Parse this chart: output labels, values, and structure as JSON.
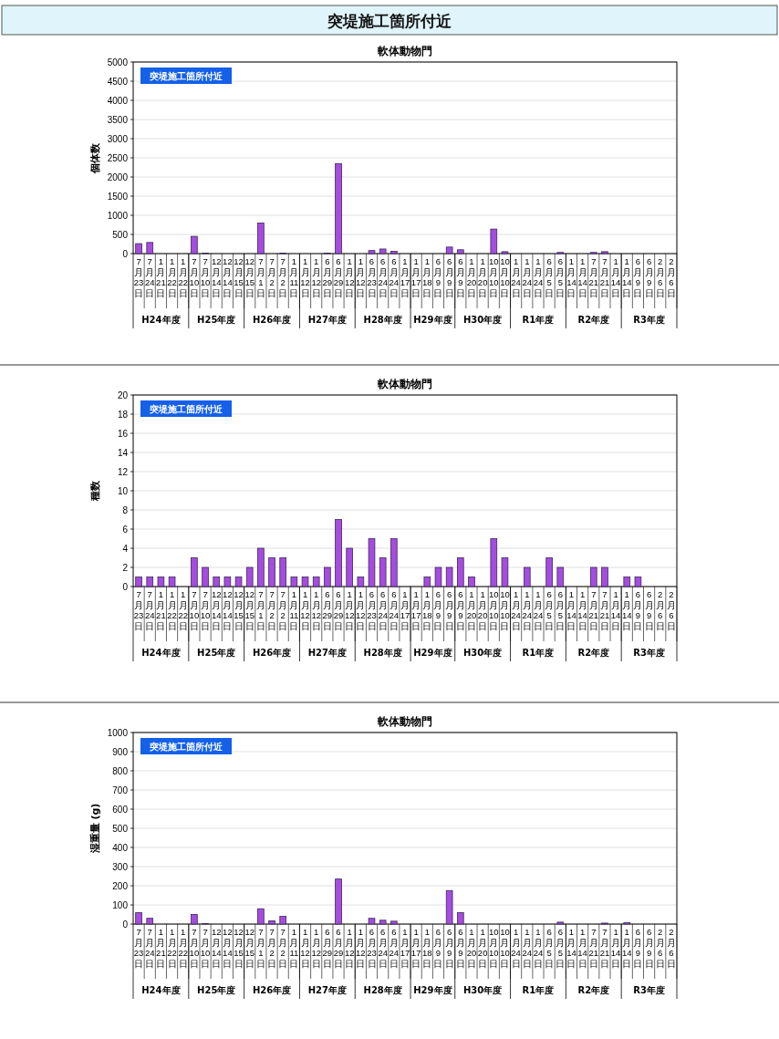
{
  "chart_data": [
    {
      "type": "bar",
      "subtitle": "突堤施工箇所付近",
      "title": "軟体動物門",
      "ylabel": "個体数",
      "categories": [
        "7月23日",
        "7月24日",
        "1月21日",
        "1月22日",
        "1月22日",
        "7月10日",
        "7月10日",
        "12月14日",
        "12月14日",
        "12月15日",
        "12月15日",
        "7月1日",
        "7月2日",
        "7月2日",
        "1月11日",
        "1月12日",
        "1月12日",
        "6月29日",
        "6月29日",
        "1月12日",
        "1月12日",
        "6月23日",
        "6月24日",
        "6月24日",
        "1月17日",
        "1月17日",
        "1月18日",
        "6月9日",
        "6月9日",
        "6月9日",
        "1月20日",
        "1月20日",
        "10月10日",
        "10月10日",
        "1月24日",
        "1月24日",
        "1月24日",
        "6月5日",
        "6月5日",
        "1月14日",
        "1月14日",
        "7月21日",
        "7月21日",
        "1月14日",
        "1月14日",
        "6月9日",
        "6月9日",
        "2月6日",
        "2月6日"
      ],
      "values": [
        260,
        290,
        0,
        0,
        0,
        450,
        10,
        0,
        0,
        0,
        0,
        800,
        0,
        10,
        0,
        0,
        0,
        10,
        2350,
        0,
        0,
        80,
        120,
        60,
        0,
        0,
        0,
        0,
        170,
        100,
        0,
        0,
        640,
        50,
        0,
        0,
        0,
        0,
        30,
        0,
        0,
        30,
        50,
        0,
        0,
        0,
        0,
        0,
        0
      ],
      "color": "#a64ce0",
      "ylim": [
        0,
        5000
      ],
      "yticks": [
        0,
        500,
        1000,
        1500,
        2000,
        2500,
        3000,
        3500,
        4000,
        4500,
        5000
      ],
      "grid": "y",
      "annotations": [
        "突堤施工箇所付近",
        "H24年度",
        "H25年度",
        "H26年度",
        "H27年度",
        "H28年度",
        "H29年度",
        "H30年度",
        "R1年度",
        "R2年度",
        "R3年度"
      ]
    },
    {
      "type": "bar",
      "title": "軟体動物門",
      "ylabel": "種数",
      "categories": [
        "7月23日",
        "7月24日",
        "1月21日",
        "1月22日",
        "1月22日",
        "7月10日",
        "7月10日",
        "12月14日",
        "12月14日",
        "12月15日",
        "12月15日",
        "7月1日",
        "7月2日",
        "7月2日",
        "1月11日",
        "1月12日",
        "1月12日",
        "6月29日",
        "6月29日",
        "1月12日",
        "1月12日",
        "6月23日",
        "6月24日",
        "6月24日",
        "1月17日",
        "1月17日",
        "1月18日",
        "6月9日",
        "6月9日",
        "6月9日",
        "1月20日",
        "1月20日",
        "10月10日",
        "10月10日",
        "1月24日",
        "1月24日",
        "1月24日",
        "6月5日",
        "6月5日",
        "1月14日",
        "1月14日",
        "7月21日",
        "7月21日",
        "1月14日",
        "1月14日",
        "6月9日",
        "6月9日",
        "2月6日",
        "2月6日"
      ],
      "values": [
        1,
        1,
        1,
        1,
        0,
        3,
        2,
        1,
        1,
        1,
        2,
        4,
        3,
        3,
        1,
        1,
        1,
        2,
        7,
        4,
        1,
        5,
        3,
        5,
        0,
        0,
        1,
        2,
        2,
        3,
        1,
        0,
        5,
        3,
        0,
        2,
        0,
        3,
        2,
        0,
        0,
        2,
        2,
        0,
        1,
        1,
        0,
        0,
        0
      ],
      "color": "#a64ce0",
      "ylim": [
        0,
        20
      ],
      "yticks": [
        0,
        2,
        4,
        6,
        8,
        10,
        12,
        14,
        16,
        18,
        20
      ],
      "grid": "y",
      "annotations": [
        "突堤施工箇所付近",
        "H24年度",
        "H25年度",
        "H26年度",
        "H27年度",
        "H28年度",
        "H29年度",
        "H30年度",
        "R1年度",
        "R2年度",
        "R3年度"
      ]
    },
    {
      "type": "bar",
      "title": "軟体動物門",
      "ylabel": "湿重量 (g)",
      "categories": [
        "7月23日",
        "7月24日",
        "1月21日",
        "1月22日",
        "1月22日",
        "7月10日",
        "7月10日",
        "12月14日",
        "12月14日",
        "12月15日",
        "12月15日",
        "7月1日",
        "7月2日",
        "7月2日",
        "1月11日",
        "1月12日",
        "1月12日",
        "6月29日",
        "6月29日",
        "1月12日",
        "1月12日",
        "6月23日",
        "6月24日",
        "6月24日",
        "1月17日",
        "1月17日",
        "1月18日",
        "6月9日",
        "6月9日",
        "6月9日",
        "1月20日",
        "1月20日",
        "10月10日",
        "10月10日",
        "1月24日",
        "1月24日",
        "1月24日",
        "6月5日",
        "6月5日",
        "1月14日",
        "1月14日",
        "7月21日",
        "7月21日",
        "1月14日",
        "1月14日",
        "6月9日",
        "6月9日",
        "2月6日",
        "2月6日"
      ],
      "values": [
        60,
        30,
        0,
        0,
        0,
        50,
        3,
        0,
        0,
        0,
        0,
        80,
        17,
        40,
        0,
        0,
        0,
        0,
        235,
        0,
        0,
        30,
        20,
        15,
        0,
        0,
        0,
        0,
        175,
        60,
        0,
        0,
        0,
        0,
        0,
        0,
        0,
        0,
        10,
        0,
        0,
        0,
        5,
        0,
        8,
        0,
        0,
        0,
        0
      ],
      "color": "#a64ce0",
      "ylim": [
        0,
        1000
      ],
      "yticks": [
        0,
        100,
        200,
        300,
        400,
        500,
        600,
        700,
        800,
        900,
        1000
      ],
      "grid": "y",
      "annotations": [
        "突堤施工箇所付近",
        "H24年度",
        "H25年度",
        "H26年度",
        "H27年度",
        "H28年度",
        "H29年度",
        "H30年度",
        "R1年度",
        "R2年度",
        "R3年度"
      ]
    }
  ]
}
